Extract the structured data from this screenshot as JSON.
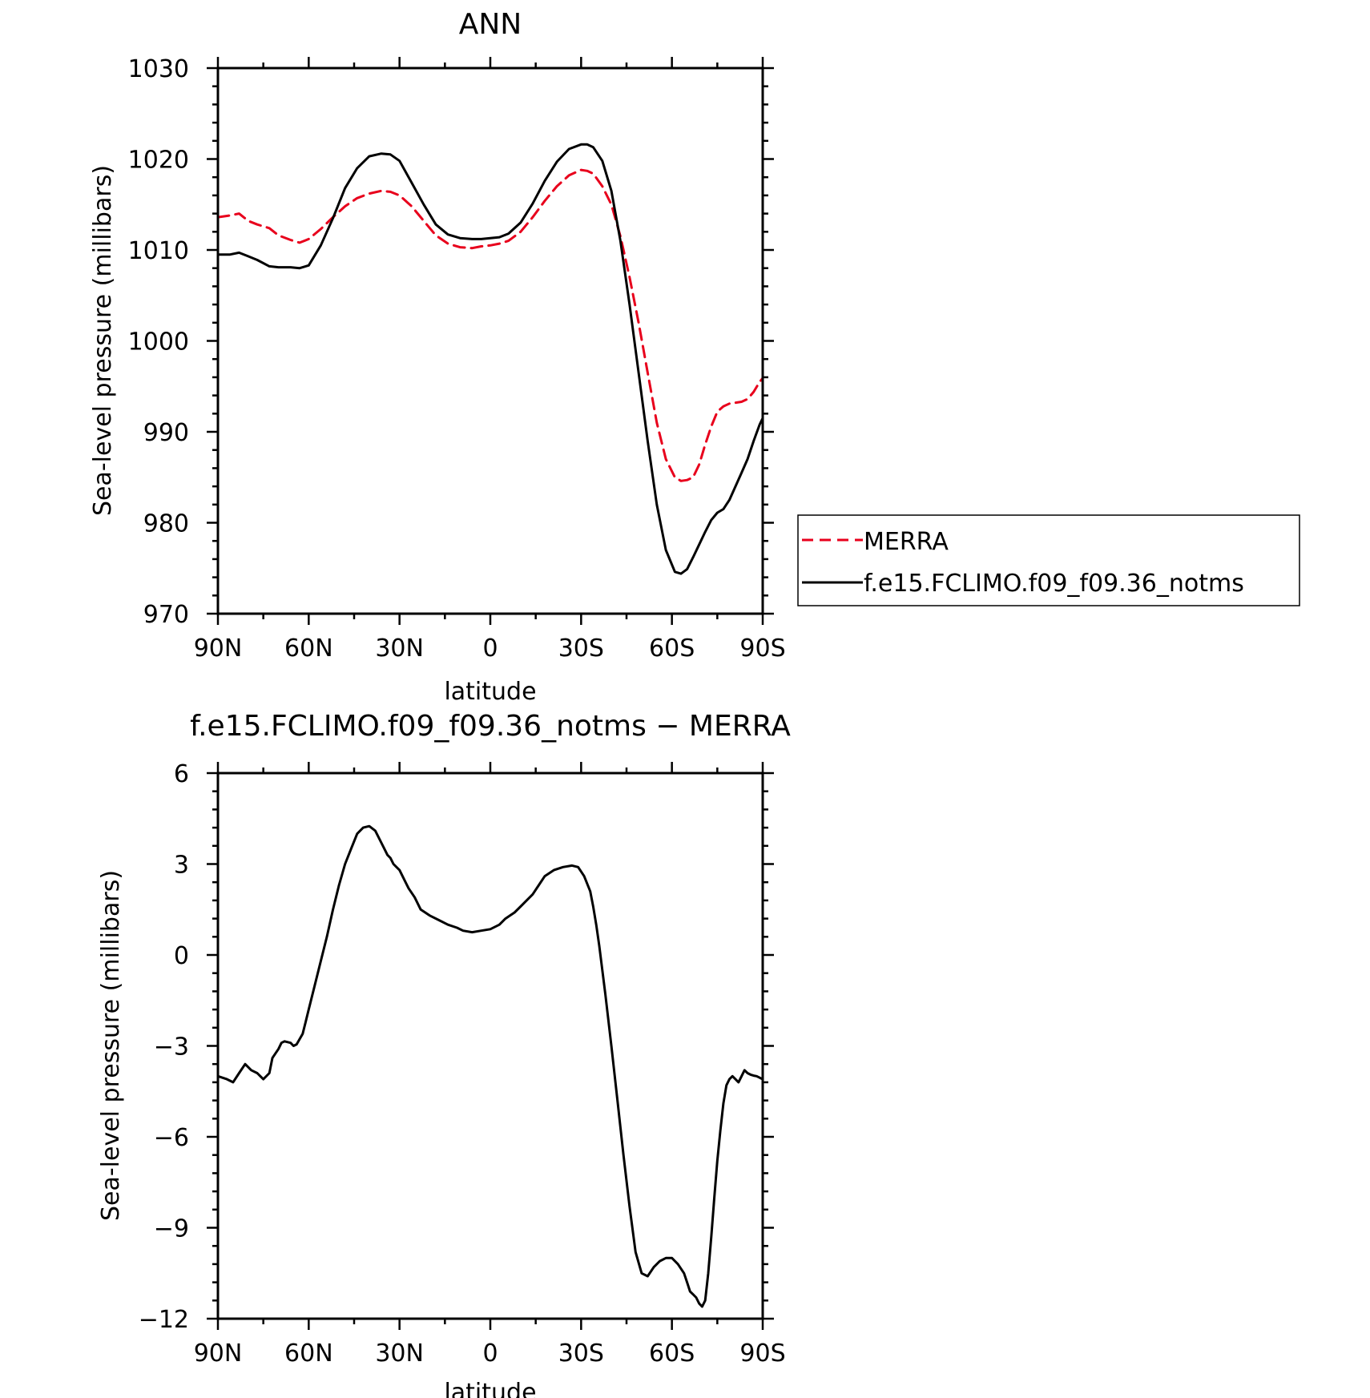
{
  "chart_data": [
    {
      "type": "line",
      "title": "ANN",
      "xlabel": "latitude",
      "ylabel": "Sea-level pressure (millibars)",
      "xlim": [
        90,
        -90
      ],
      "ylim": [
        970,
        1030
      ],
      "x_tick_values": [
        90,
        60,
        30,
        0,
        -30,
        -60,
        -90
      ],
      "x_tick_labels": [
        "90N",
        "60N",
        "30N",
        "0",
        "30S",
        "60S",
        "90S"
      ],
      "y_tick_values": [
        970,
        980,
        990,
        1000,
        1010,
        1020,
        1030
      ],
      "y_tick_labels": [
        "970",
        "980",
        "990",
        "1000",
        "1010",
        "1020",
        "1030"
      ],
      "legend": {
        "placement": "right"
      },
      "colors": {
        "MERRA": "#e8001c",
        "model": "#000000"
      },
      "series": [
        {
          "name": "MERRA",
          "style": "dashed",
          "x": [
            90,
            86,
            83,
            80,
            77,
            73,
            70,
            66,
            63,
            60,
            56,
            52,
            48,
            44,
            40,
            36,
            33,
            30,
            26,
            22,
            18,
            14,
            10,
            6,
            3,
            0,
            -3,
            -6,
            -10,
            -14,
            -18,
            -22,
            -26,
            -30,
            -32,
            -34,
            -37,
            -40,
            -43,
            -46,
            -49,
            -52,
            -55,
            -58,
            -61,
            -63,
            -65,
            -67,
            -69,
            -71,
            -73,
            -75,
            -77,
            -79,
            -81,
            -83,
            -85,
            -87,
            -89,
            -90
          ],
          "values": [
            1013.6,
            1013.8,
            1014.0,
            1013.2,
            1012.8,
            1012.4,
            1011.6,
            1011.1,
            1010.8,
            1011.2,
            1012.3,
            1013.6,
            1014.8,
            1015.7,
            1016.2,
            1016.5,
            1016.4,
            1016.0,
            1014.8,
            1013.2,
            1011.6,
            1010.7,
            1010.3,
            1010.2,
            1010.4,
            1010.5,
            1010.7,
            1011.0,
            1012.0,
            1013.6,
            1015.4,
            1017.0,
            1018.2,
            1018.8,
            1018.7,
            1018.4,
            1017.0,
            1015.0,
            1011.5,
            1007.0,
            1002.0,
            996.5,
            991.0,
            987.0,
            985.0,
            984.6,
            984.7,
            985.0,
            986.4,
            988.6,
            990.6,
            992.2,
            992.8,
            993.1,
            993.2,
            993.3,
            993.6,
            994.4,
            995.5,
            995.9
          ]
        },
        {
          "name": "f.e15.FCLIMO.f09_f09.36_notms",
          "style": "solid",
          "x": [
            90,
            86,
            83,
            80,
            77,
            73,
            70,
            66,
            63,
            60,
            56,
            52,
            48,
            44,
            40,
            36,
            33,
            30,
            26,
            22,
            18,
            14,
            10,
            6,
            3,
            0,
            -3,
            -6,
            -10,
            -14,
            -18,
            -22,
            -26,
            -30,
            -32,
            -34,
            -37,
            -40,
            -43,
            -46,
            -49,
            -52,
            -55,
            -58,
            -61,
            -63,
            -65,
            -67,
            -69,
            -71,
            -73,
            -75,
            -77,
            -79,
            -81,
            -83,
            -85,
            -87,
            -89,
            -90
          ],
          "values": [
            1009.5,
            1009.5,
            1009.7,
            1009.3,
            1008.9,
            1008.2,
            1008.1,
            1008.1,
            1008.0,
            1008.3,
            1010.5,
            1013.5,
            1016.8,
            1019.0,
            1020.3,
            1020.6,
            1020.5,
            1019.8,
            1017.4,
            1015.0,
            1012.8,
            1011.7,
            1011.3,
            1011.2,
            1011.2,
            1011.3,
            1011.4,
            1011.8,
            1013.0,
            1015.1,
            1017.6,
            1019.7,
            1021.1,
            1021.6,
            1021.6,
            1021.3,
            1019.8,
            1016.5,
            1011.0,
            1004.0,
            996.5,
            989.0,
            982.0,
            977.0,
            974.6,
            974.4,
            974.9,
            976.2,
            977.6,
            979.0,
            980.3,
            981.1,
            981.5,
            982.5,
            984.0,
            985.5,
            987.0,
            989.0,
            990.8,
            991.5
          ]
        }
      ]
    },
    {
      "type": "line",
      "title": "f.e15.FCLIMO.f09_f09.36_notms − MERRA",
      "xlabel": "latitude",
      "ylabel": "Sea-level pressure (millibars)",
      "xlim": [
        90,
        -90
      ],
      "ylim": [
        -12,
        6
      ],
      "x_tick_values": [
        90,
        60,
        30,
        0,
        -30,
        -60,
        -90
      ],
      "x_tick_labels": [
        "90N",
        "60N",
        "30N",
        "0",
        "30S",
        "60S",
        "90S"
      ],
      "y_tick_values": [
        -12,
        -9,
        -6,
        -3,
        0,
        3,
        6
      ],
      "y_tick_labels": [
        "−12",
        "−9",
        "−6",
        "−3",
        "0",
        "3",
        "6"
      ],
      "colors": {
        "line": "#000000"
      },
      "series": [
        {
          "style": "solid",
          "x": [
            90,
            87,
            85,
            83,
            81,
            79,
            77,
            76,
            75,
            73,
            72,
            70,
            69,
            68,
            66,
            65,
            64,
            62,
            61,
            60,
            58,
            56,
            54,
            52,
            50,
            48,
            46,
            44,
            42,
            40,
            38,
            36,
            35,
            34,
            33,
            32,
            31,
            30,
            29,
            27,
            25,
            23,
            20,
            17,
            14,
            11,
            9,
            6,
            3,
            0,
            -3,
            -5,
            -8,
            -10,
            -12,
            -14,
            -16,
            -18,
            -21,
            -24,
            -27,
            -29,
            -31,
            -33,
            -34,
            -35,
            -36,
            -37,
            -38,
            -40,
            -42,
            -44,
            -46,
            -48,
            -50,
            -52,
            -54,
            -56,
            -58,
            -60,
            -62,
            -64,
            -65,
            -66,
            -67,
            -68,
            -69,
            -70,
            -71,
            -72,
            -73,
            -74,
            -75,
            -76,
            -77,
            -78,
            -79,
            -80,
            -81,
            -82,
            -83,
            -84,
            -85,
            -86,
            -87,
            -88,
            -89,
            -90
          ],
          "values": [
            -4.0,
            -4.1,
            -4.2,
            -3.9,
            -3.6,
            -3.8,
            -3.9,
            -4.0,
            -4.1,
            -3.9,
            -3.4,
            -3.1,
            -2.9,
            -2.85,
            -2.9,
            -3.0,
            -2.95,
            -2.6,
            -2.2,
            -1.8,
            -1.0,
            -0.2,
            0.6,
            1.5,
            2.3,
            3.0,
            3.5,
            4.0,
            4.2,
            4.25,
            4.1,
            3.7,
            3.5,
            3.3,
            3.2,
            3.0,
            2.9,
            2.8,
            2.6,
            2.2,
            1.9,
            1.5,
            1.3,
            1.15,
            1.0,
            0.9,
            0.8,
            0.75,
            0.8,
            0.85,
            1.0,
            1.2,
            1.4,
            1.6,
            1.8,
            2.0,
            2.3,
            2.6,
            2.8,
            2.9,
            2.95,
            2.9,
            2.6,
            2.1,
            1.6,
            1.0,
            0.3,
            -0.5,
            -1.3,
            -3.0,
            -4.8,
            -6.6,
            -8.3,
            -9.8,
            -10.5,
            -10.6,
            -10.3,
            -10.1,
            -10.0,
            -10.0,
            -10.2,
            -10.5,
            -10.8,
            -11.1,
            -11.2,
            -11.3,
            -11.5,
            -11.6,
            -11.4,
            -10.5,
            -9.3,
            -8.0,
            -6.8,
            -5.8,
            -4.9,
            -4.3,
            -4.1,
            -4.0,
            -4.1,
            -4.2,
            -4.0,
            -3.8,
            -3.9,
            -3.95,
            -3.98,
            -4.0,
            -4.05,
            -4.1
          ]
        }
      ]
    }
  ]
}
